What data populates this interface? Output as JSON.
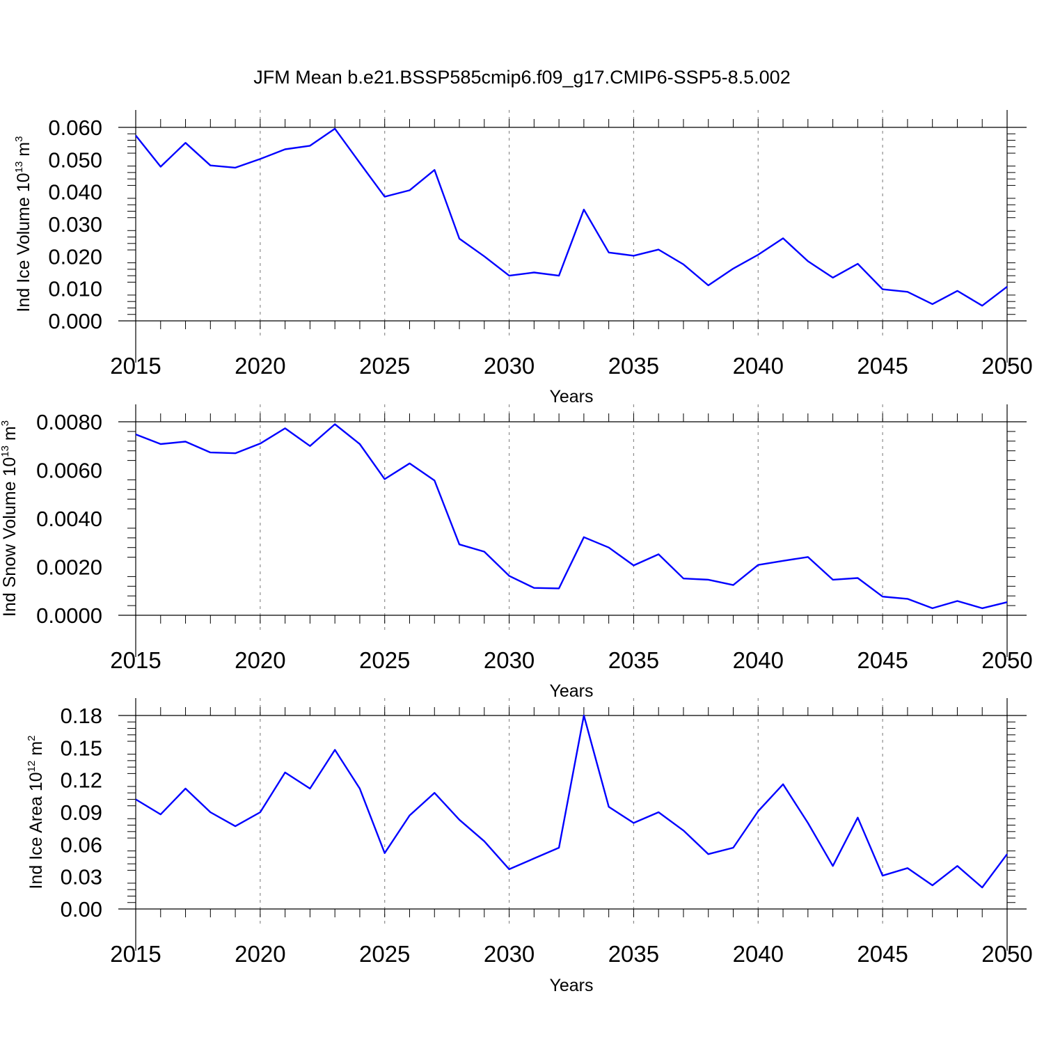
{
  "title": "JFM Mean b.e21.BSSP585cmip6.f09_g17.CMIP6-SSP5-8.5.002",
  "colors": {
    "line": "#0000ff",
    "axis": "#000000",
    "grid": "#8c8c8c"
  },
  "chart_data": [
    {
      "type": "line",
      "title": "JFM Mean b.e21.BSSP585cmip6.f09_g17.CMIP6-SSP5-8.5.002",
      "xlabel": "Years",
      "ylabel": {
        "prefix": "Ind Ice Volume 10",
        "exp1": "13",
        "mid": " m",
        "exp2": "3"
      },
      "xlim": [
        2015,
        2050
      ],
      "ylim": [
        0,
        0.06
      ],
      "xticks": [
        "2015",
        "2020",
        "2025",
        "2030",
        "2035",
        "2040",
        "2045",
        "2050"
      ],
      "yticks": [
        "0.000",
        "0.010",
        "0.020",
        "0.030",
        "0.040",
        "0.050",
        "0.060"
      ],
      "ytick_values": [
        0,
        0.01,
        0.02,
        0.03,
        0.04,
        0.05,
        0.06
      ],
      "grid": "vertical dashed at major x ticks",
      "x": [
        2015,
        2016,
        2017,
        2018,
        2019,
        2020,
        2021,
        2022,
        2023,
        2024,
        2025,
        2026,
        2027,
        2028,
        2029,
        2030,
        2031,
        2032,
        2033,
        2034,
        2035,
        2036,
        2037,
        2038,
        2039,
        2040,
        2041,
        2042,
        2043,
        2044,
        2045,
        2046,
        2047,
        2048,
        2049,
        2050
      ],
      "series": [
        {
          "values": [
            0.0575,
            0.0478,
            0.0552,
            0.0482,
            0.0475,
            0.0502,
            0.0532,
            0.0543,
            0.0596,
            0.049,
            0.0385,
            0.0405,
            0.0468,
            0.0255,
            0.02,
            0.014,
            0.015,
            0.014,
            0.0345,
            0.0212,
            0.0202,
            0.0221,
            0.0175,
            0.011,
            0.0162,
            0.0205,
            0.0256,
            0.0185,
            0.0134,
            0.0177,
            0.0098,
            0.009,
            0.0052,
            0.0093,
            0.0047,
            0.0106
          ]
        }
      ]
    },
    {
      "type": "line",
      "xlabel": "Years",
      "ylabel": {
        "prefix": "Ind Snow Volume 10",
        "exp1": "13",
        "mid": " m",
        "exp2": "3"
      },
      "xlim": [
        2015,
        2050
      ],
      "ylim": [
        0,
        0.008
      ],
      "xticks": [
        "2015",
        "2020",
        "2025",
        "2030",
        "2035",
        "2040",
        "2045",
        "2050"
      ],
      "yticks": [
        "0.0000",
        "0.0020",
        "0.0040",
        "0.0060",
        "0.0080"
      ],
      "ytick_values": [
        0,
        0.002,
        0.004,
        0.006,
        0.008
      ],
      "grid": "vertical dashed at major x ticks",
      "x": [
        2015,
        2016,
        2017,
        2018,
        2019,
        2020,
        2021,
        2022,
        2023,
        2024,
        2025,
        2026,
        2027,
        2028,
        2029,
        2030,
        2031,
        2032,
        2033,
        2034,
        2035,
        2036,
        2037,
        2038,
        2039,
        2040,
        2041,
        2042,
        2043,
        2044,
        2045,
        2046,
        2047,
        2048,
        2049,
        2050
      ],
      "series": [
        {
          "values": [
            0.00748,
            0.00708,
            0.00718,
            0.00673,
            0.0067,
            0.0071,
            0.00773,
            0.007,
            0.0079,
            0.00708,
            0.00563,
            0.00628,
            0.00557,
            0.00293,
            0.00263,
            0.00163,
            0.00113,
            0.00111,
            0.00323,
            0.0028,
            0.00206,
            0.00252,
            0.00152,
            0.00147,
            0.00125,
            0.00208,
            0.00225,
            0.00241,
            0.00147,
            0.00154,
            0.00077,
            0.00068,
            0.00029,
            0.00059,
            0.00029,
            0.00054
          ]
        }
      ]
    },
    {
      "type": "line",
      "xlabel": "Years",
      "ylabel": {
        "prefix": "Ind Ice Area 10",
        "exp1": "12",
        "mid": " m",
        "exp2": "2"
      },
      "xlim": [
        2015,
        2050
      ],
      "ylim": [
        0,
        0.18
      ],
      "xticks": [
        "2015",
        "2020",
        "2025",
        "2030",
        "2035",
        "2040",
        "2045",
        "2050"
      ],
      "yticks": [
        "0.00",
        "0.03",
        "0.06",
        "0.09",
        "0.12",
        "0.15",
        "0.18"
      ],
      "ytick_values": [
        0,
        0.03,
        0.06,
        0.09,
        0.12,
        0.15,
        0.18
      ],
      "grid": "vertical dashed at major x ticks",
      "x": [
        2015,
        2016,
        2017,
        2018,
        2019,
        2020,
        2021,
        2022,
        2023,
        2024,
        2025,
        2026,
        2027,
        2028,
        2029,
        2030,
        2031,
        2032,
        2033,
        2034,
        2035,
        2036,
        2037,
        2038,
        2039,
        2040,
        2041,
        2042,
        2043,
        2044,
        2045,
        2046,
        2047,
        2048,
        2049,
        2050
      ],
      "series": [
        {
          "values": [
            0.102,
            0.088,
            0.112,
            0.09,
            0.077,
            0.09,
            0.127,
            0.112,
            0.148,
            0.112,
            0.052,
            0.087,
            0.108,
            0.083,
            0.063,
            0.037,
            0.047,
            0.057,
            0.18,
            0.095,
            0.08,
            0.09,
            0.073,
            0.051,
            0.057,
            0.091,
            0.116,
            0.08,
            0.04,
            0.085,
            0.031,
            0.038,
            0.022,
            0.04,
            0.02,
            0.051
          ]
        }
      ]
    }
  ]
}
